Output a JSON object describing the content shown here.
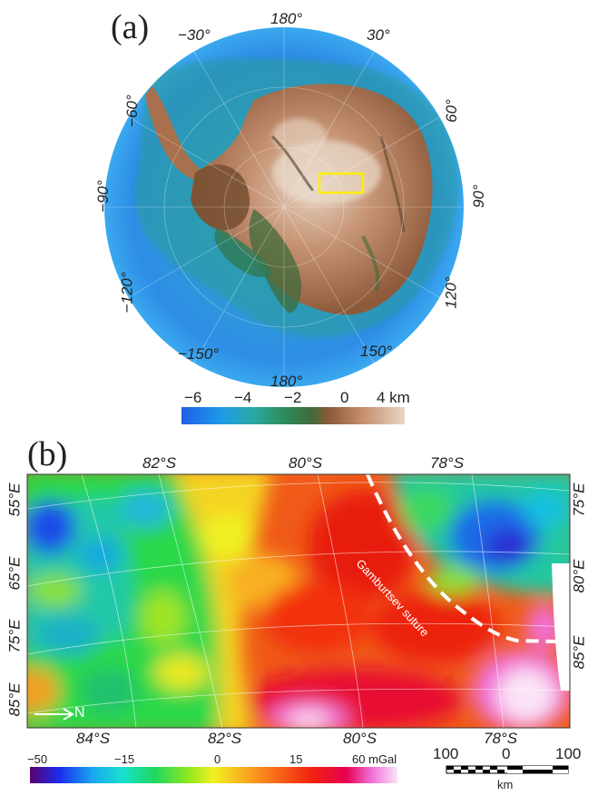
{
  "panel_a": {
    "label": "(a)",
    "longitudes": {
      "top": "180°",
      "neg30": "−30°",
      "pos30": "30°",
      "neg60": "−60°",
      "pos60": "60°",
      "neg90": "−90°",
      "pos90": "90°",
      "neg120": "−120°",
      "pos120": "120°",
      "neg150": "−150°",
      "pos150": "150°",
      "bottom": "180°"
    },
    "colorbar": {
      "ticks": [
        "−6",
        "−4",
        "−2",
        "0",
        "4 km"
      ],
      "colors": [
        "#1f5fe6",
        "#1e9be8",
        "#2aa9a3",
        "#2e8c5a",
        "#3f6b3a",
        "#8a5a3a",
        "#c48a66",
        "#e8d6c6"
      ]
    },
    "highlight_color": "#ffee00"
  },
  "panel_b": {
    "label": "(b)",
    "lat_top": [
      "82°S",
      "80°S",
      "78°S"
    ],
    "lat_bottom": [
      "84°S",
      "82°S",
      "80°S",
      "78°S"
    ],
    "lon_left": [
      "55°E",
      "65°E",
      "75°E",
      "85°E"
    ],
    "lon_right": [
      "75°E",
      "80°E",
      "85°E"
    ],
    "suture_label": "Gamburtsev  suture",
    "north_label": "N",
    "colorbar": {
      "ticks": [
        "−50",
        "−15",
        "0",
        "15",
        "60 mGal"
      ],
      "colors": [
        "#5a006e",
        "#1b2cf0",
        "#1aa6f0",
        "#18e0d0",
        "#1ed860",
        "#8ee820",
        "#f0f020",
        "#f8b020",
        "#f86a18",
        "#f02010",
        "#e80050",
        "#f070d8",
        "#fbe4f7"
      ]
    },
    "scalebar": {
      "labels": [
        "100",
        "0",
        "100"
      ],
      "unit": "km"
    }
  }
}
